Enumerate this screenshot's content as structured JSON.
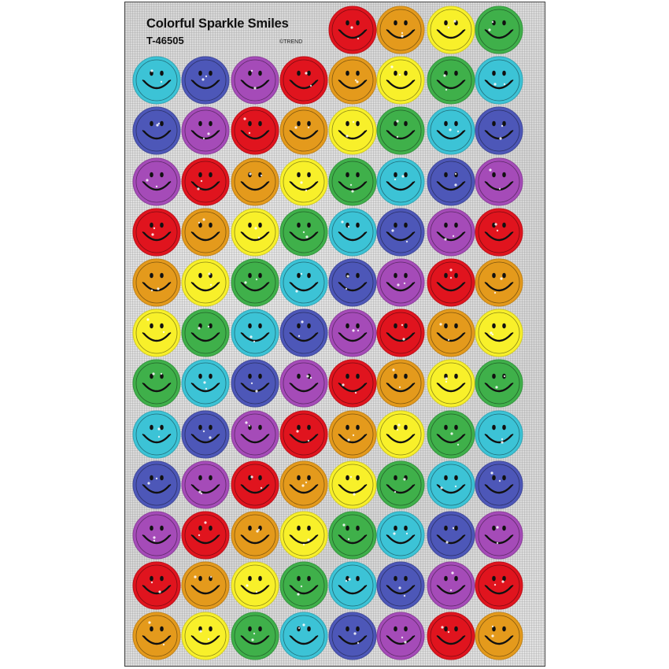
{
  "sheet": {
    "title": "Colorful Sparkle Smiles",
    "product_code": "T-46505",
    "copyright": "©TREND"
  },
  "colors": {
    "cyan": "#3cc3d6",
    "blue": "#4d57b8",
    "purple": "#a54bb8",
    "red": "#e0141e",
    "orange": "#e49a1c",
    "yellow": "#f8f02a",
    "green": "#3fb04a"
  },
  "sticker_icon": "smiley-face-icon",
  "rows": [
    [
      null,
      null,
      null,
      null,
      "red",
      "orange",
      "yellow",
      "green"
    ],
    [
      "cyan",
      "blue",
      "purple",
      "red",
      "orange",
      "yellow",
      "green",
      "cyan"
    ],
    [
      "blue",
      "purple",
      "red",
      "orange",
      "yellow",
      "green",
      "cyan",
      "blue"
    ],
    [
      "purple",
      "red",
      "orange",
      "yellow",
      "green",
      "cyan",
      "blue",
      "purple"
    ],
    [
      "red",
      "orange",
      "yellow",
      "green",
      "cyan",
      "blue",
      "purple",
      "red"
    ],
    [
      "orange",
      "yellow",
      "green",
      "cyan",
      "blue",
      "purple",
      "red",
      "orange"
    ],
    [
      "yellow",
      "green",
      "cyan",
      "blue",
      "purple",
      "red",
      "orange",
      "yellow"
    ],
    [
      "green",
      "cyan",
      "blue",
      "purple",
      "red",
      "orange",
      "yellow",
      "green"
    ],
    [
      "cyan",
      "blue",
      "purple",
      "red",
      "orange",
      "yellow",
      "green",
      "cyan"
    ],
    [
      "blue",
      "purple",
      "red",
      "orange",
      "yellow",
      "green",
      "cyan",
      "blue"
    ],
    [
      "purple",
      "red",
      "orange",
      "yellow",
      "green",
      "cyan",
      "blue",
      "purple"
    ],
    [
      "red",
      "orange",
      "yellow",
      "green",
      "cyan",
      "blue",
      "purple",
      "red"
    ],
    [
      "orange",
      "yellow",
      "green",
      "cyan",
      "blue",
      "purple",
      "red",
      "orange"
    ]
  ]
}
